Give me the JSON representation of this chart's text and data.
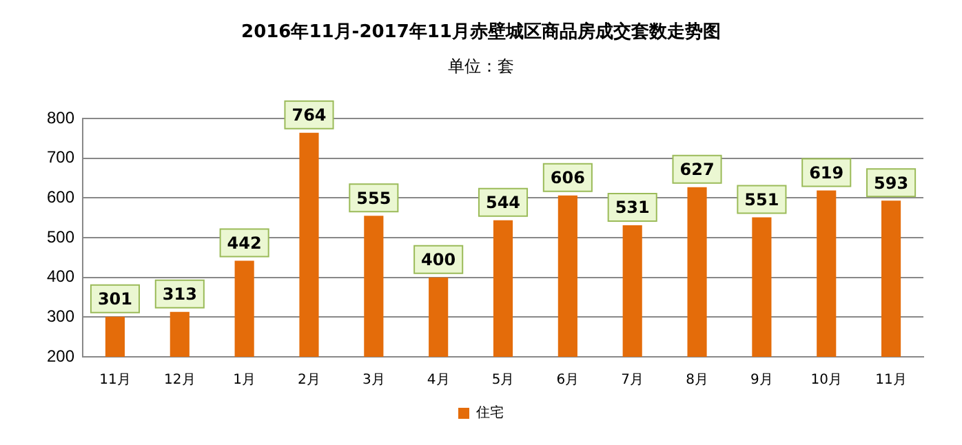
{
  "chart_data": {
    "type": "bar",
    "title": "2016年11月-2017年11月赤壁城区商品房成交套数走势图",
    "subtitle": "单位：套",
    "categories": [
      "11月",
      "12月",
      "1月",
      "2月",
      "3月",
      "4月",
      "5月",
      "6月",
      "7月",
      "8月",
      "9月",
      "10月",
      "11月"
    ],
    "series": [
      {
        "name": "住宅",
        "color": "#e46c0a",
        "values": [
          301,
          313,
          442,
          764,
          555,
          400,
          544,
          606,
          531,
          627,
          551,
          619,
          593
        ]
      }
    ],
    "ylim": [
      200,
      800
    ],
    "yticks": [
      200,
      300,
      400,
      500,
      600,
      700,
      800
    ],
    "grid": "y",
    "legend": "bottom",
    "data_labels": true
  }
}
